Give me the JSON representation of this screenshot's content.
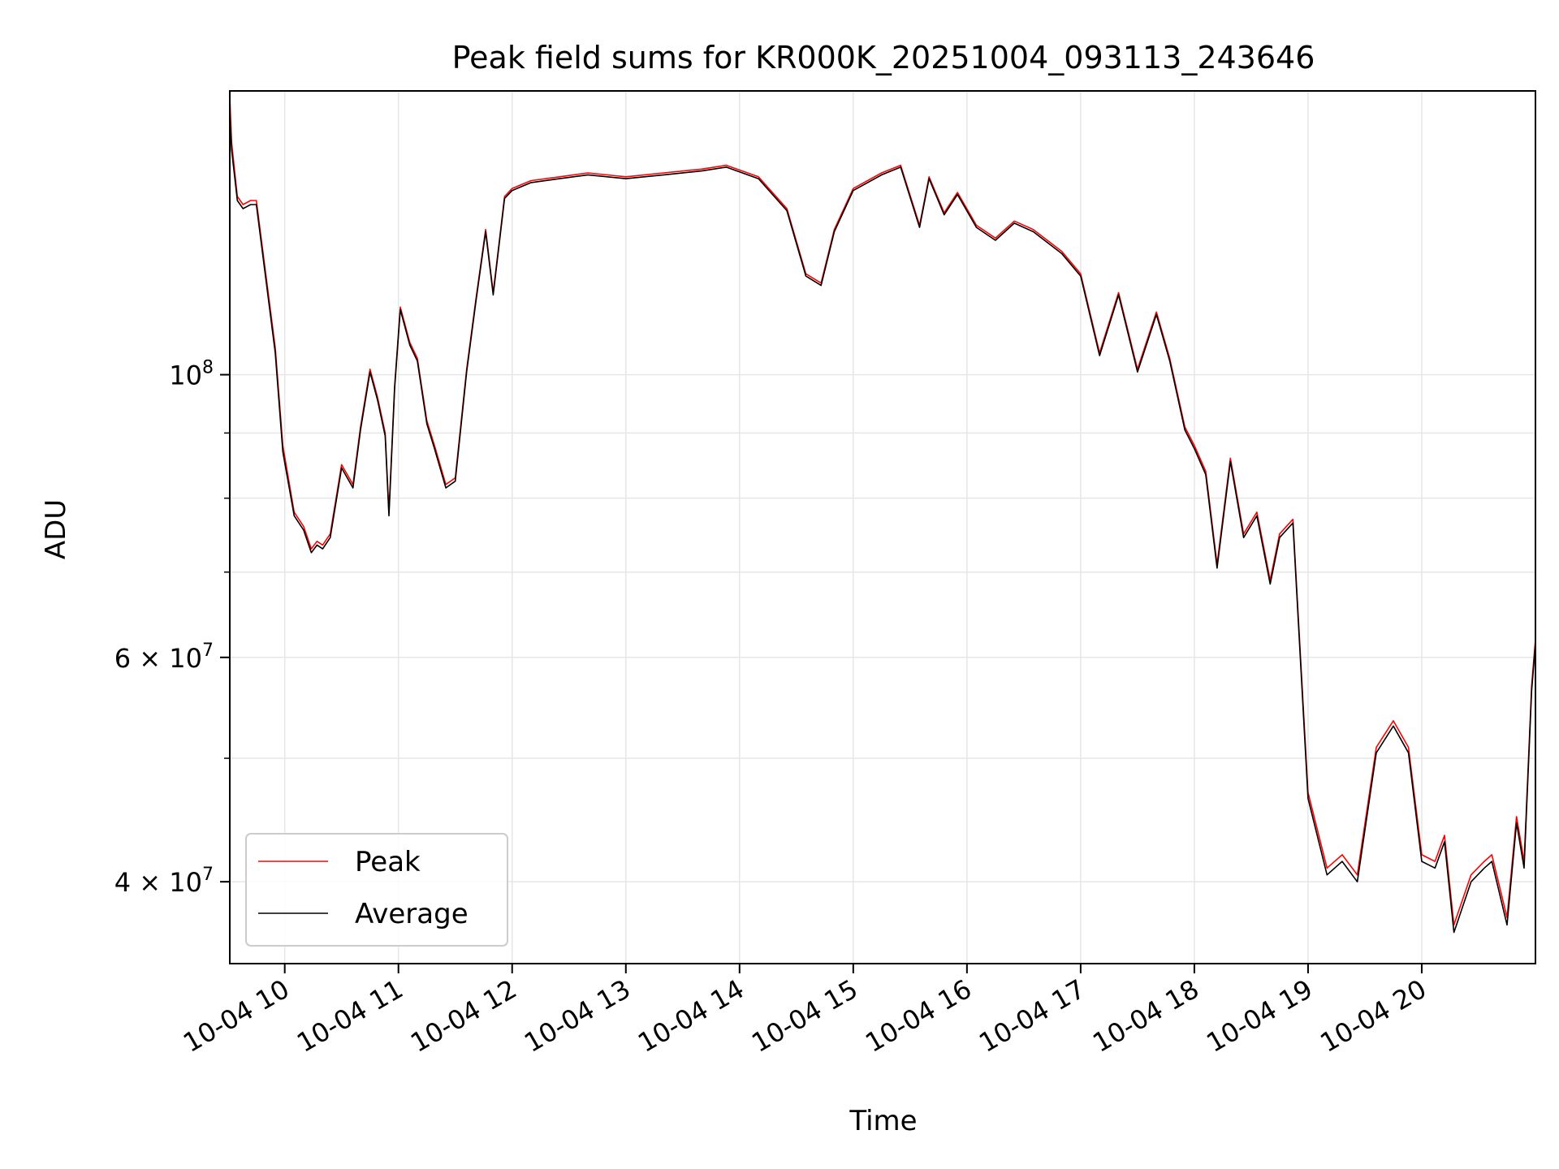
{
  "chart_data": {
    "type": "line",
    "title": "Peak field sums for KR000K_20251004_093113_243646",
    "xlabel": "Time",
    "ylabel": "ADU",
    "y_scale": "log",
    "ylim": [
      34500000,
      167000000
    ],
    "xlim": [
      "2025-10-04 09:31",
      "2025-10-04 21:00"
    ],
    "grid": true,
    "legend_position": "lower-left",
    "x_ticks": [
      "10-04 10",
      "10-04 11",
      "10-04 12",
      "10-04 13",
      "10-04 14",
      "10-04 15",
      "10-04 16",
      "10-04 17",
      "10-04 18",
      "10-04 19",
      "10-04 20"
    ],
    "y_ticks": [
      {
        "value": 100000000,
        "mantissa": "",
        "exponent": "8"
      },
      {
        "value": 60000000,
        "mantissa": "6",
        "exponent": "7"
      },
      {
        "value": 40000000,
        "mantissa": "4",
        "exponent": "7"
      }
    ],
    "x": [
      "2025-10-04 09:31",
      "2025-10-04 09:32",
      "2025-10-04 09:35",
      "2025-10-04 09:38",
      "2025-10-04 09:42",
      "2025-10-04 09:45",
      "2025-10-04 09:50",
      "2025-10-04 09:55",
      "2025-10-04 09:59",
      "2025-10-04 10:05",
      "2025-10-04 10:10",
      "2025-10-04 10:14",
      "2025-10-04 10:17",
      "2025-10-04 10:20",
      "2025-10-04 10:24",
      "2025-10-04 10:30",
      "2025-10-04 10:36",
      "2025-10-04 10:40",
      "2025-10-04 10:45",
      "2025-10-04 10:49",
      "2025-10-04 10:53",
      "2025-10-04 10:55",
      "2025-10-04 10:58",
      "2025-10-04 11:01",
      "2025-10-04 11:06",
      "2025-10-04 11:10",
      "2025-10-04 11:15",
      "2025-10-04 11:19",
      "2025-10-04 11:25",
      "2025-10-04 11:30",
      "2025-10-04 11:36",
      "2025-10-04 11:41",
      "2025-10-04 11:46",
      "2025-10-04 11:50",
      "2025-10-04 11:56",
      "2025-10-04 12:00",
      "2025-10-04 12:10",
      "2025-10-04 12:25",
      "2025-10-04 12:40",
      "2025-10-04 13:00",
      "2025-10-04 13:20",
      "2025-10-04 13:40",
      "2025-10-04 13:53",
      "2025-10-04 14:10",
      "2025-10-04 14:25",
      "2025-10-04 14:35",
      "2025-10-04 14:43",
      "2025-10-04 14:50",
      "2025-10-04 15:00",
      "2025-10-04 15:15",
      "2025-10-04 15:25",
      "2025-10-04 15:35",
      "2025-10-04 15:40",
      "2025-10-04 15:48",
      "2025-10-04 15:55",
      "2025-10-04 16:05",
      "2025-10-04 16:15",
      "2025-10-04 16:25",
      "2025-10-04 16:35",
      "2025-10-04 16:50",
      "2025-10-04 17:00",
      "2025-10-04 17:10",
      "2025-10-04 17:20",
      "2025-10-04 17:30",
      "2025-10-04 17:40",
      "2025-10-04 17:47",
      "2025-10-04 17:55",
      "2025-10-04 18:00",
      "2025-10-04 18:06",
      "2025-10-04 18:12",
      "2025-10-04 18:19",
      "2025-10-04 18:26",
      "2025-10-04 18:33",
      "2025-10-04 18:40",
      "2025-10-04 18:45",
      "2025-10-04 18:52",
      "2025-10-04 19:00",
      "2025-10-04 19:10",
      "2025-10-04 19:18",
      "2025-10-04 19:26",
      "2025-10-04 19:36",
      "2025-10-04 19:45",
      "2025-10-04 19:53",
      "2025-10-04 20:00",
      "2025-10-04 20:07",
      "2025-10-04 20:12",
      "2025-10-04 20:17",
      "2025-10-04 20:26",
      "2025-10-04 20:33",
      "2025-10-04 20:37",
      "2025-10-04 20:45",
      "2025-10-04 20:50",
      "2025-10-04 20:54",
      "2025-10-04 20:58",
      "2025-10-04 21:00"
    ],
    "series": [
      {
        "name": "Peak",
        "color": "#ff0000",
        "values": [
          165000000,
          152000000,
          138000000,
          136000000,
          137000000,
          137000000,
          120000000,
          105000000,
          88000000,
          78000000,
          76000000,
          73000000,
          74000000,
          73500000,
          75000000,
          85000000,
          82000000,
          91000000,
          101000000,
          96000000,
          90000000,
          78000000,
          98000000,
          113000000,
          106000000,
          103000000,
          92000000,
          88000000,
          82000000,
          83000000,
          101000000,
          115000000,
          130000000,
          116000000,
          138000000,
          140000000,
          142000000,
          143000000,
          144000000,
          143000000,
          144000000,
          145000000,
          146000000,
          143000000,
          135000000,
          120000000,
          118000000,
          130000000,
          140000000,
          144000000,
          146000000,
          131000000,
          143000000,
          134000000,
          139000000,
          131000000,
          128000000,
          132000000,
          130000000,
          125000000,
          120000000,
          104000000,
          116000000,
          101000000,
          112000000,
          103000000,
          91000000,
          88000000,
          84000000,
          71000000,
          86000000,
          75000000,
          78000000,
          69000000,
          75000000,
          77000000,
          47000000,
          41000000,
          42000000,
          40500000,
          51000000,
          53500000,
          51000000,
          42000000,
          41500000,
          43500000,
          37000000,
          40500000,
          41500000,
          42000000,
          37500000,
          45000000,
          41500000,
          57000000,
          62000000
        ]
      },
      {
        "name": "Average",
        "color": "#000000",
        "values": [
          160000000,
          150000000,
          137000000,
          135000000,
          136000000,
          136000000,
          119000000,
          104000000,
          87000000,
          77500000,
          75500000,
          72500000,
          73500000,
          73000000,
          74500000,
          84500000,
          81500000,
          90500000,
          100500000,
          95500000,
          89500000,
          77500000,
          97500000,
          112500000,
          105500000,
          102500000,
          91500000,
          87500000,
          81500000,
          82500000,
          100500000,
          114500000,
          129500000,
          115500000,
          137500000,
          139500000,
          141500000,
          142500000,
          143500000,
          142500000,
          143500000,
          144500000,
          145500000,
          142500000,
          134500000,
          119500000,
          117500000,
          129500000,
          139500000,
          143500000,
          145500000,
          130500000,
          142500000,
          133500000,
          138500000,
          130500000,
          127500000,
          131500000,
          129500000,
          124500000,
          119500000,
          103500000,
          115500000,
          100500000,
          111500000,
          102500000,
          90500000,
          87500000,
          83500000,
          70500000,
          85500000,
          74500000,
          77500000,
          68500000,
          74500000,
          76500000,
          46500000,
          40500000,
          41500000,
          40000000,
          50500000,
          53000000,
          50500000,
          41500000,
          41000000,
          43000000,
          36500000,
          40000000,
          41000000,
          41500000,
          37000000,
          44500000,
          41000000,
          56500000,
          61500000
        ]
      }
    ]
  }
}
